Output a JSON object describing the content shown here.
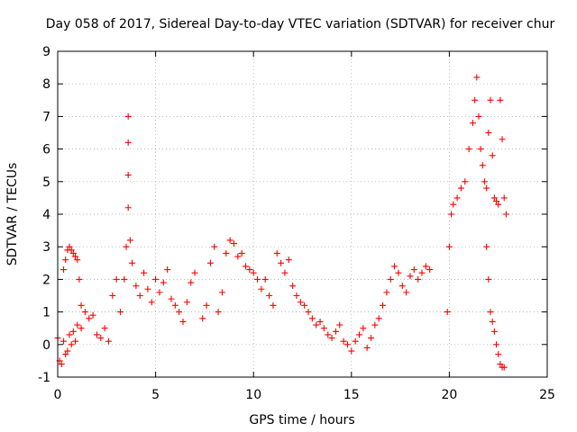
{
  "chart_data": {
    "type": "scatter",
    "title": "Day 058 of 2017, Sidereal Day-to-day VTEC variation (SDTVAR) for receiver chur",
    "xlabel": "GPS time / hours",
    "ylabel": "SDTVAR / TECUs",
    "xlim": [
      0,
      25
    ],
    "ylim": [
      -1,
      9
    ],
    "xticks": [
      "0",
      "5",
      "10",
      "15",
      "20",
      "25"
    ],
    "yticks": [
      "-1",
      "0",
      "1",
      "2",
      "3",
      "4",
      "5",
      "6",
      "7",
      "8",
      "9"
    ],
    "grid": true,
    "marker": "plus",
    "color": "#ff0000",
    "series": [
      {
        "name": "SDTVAR",
        "x": [
          0.0,
          0.1,
          0.2,
          0.3,
          0.4,
          0.5,
          0.6,
          0.7,
          0.8,
          0.9,
          1.0,
          1.2,
          1.4,
          1.6,
          1.8,
          2.0,
          2.2,
          2.4,
          2.6,
          2.8,
          3.0,
          0.3,
          0.4,
          0.5,
          0.6,
          0.7,
          0.8,
          0.9,
          1.0,
          1.1,
          1.2,
          3.2,
          3.4,
          3.5,
          3.6,
          3.6,
          3.6,
          3.6,
          3.7,
          3.8,
          4.0,
          4.2,
          4.4,
          4.6,
          4.8,
          5.0,
          5.2,
          5.4,
          5.6,
          5.8,
          6.0,
          6.2,
          6.4,
          6.6,
          6.8,
          7.0,
          7.4,
          7.6,
          7.8,
          8.0,
          8.2,
          8.4,
          8.6,
          8.8,
          9.0,
          9.2,
          9.4,
          9.6,
          9.8,
          10.0,
          10.2,
          10.4,
          10.6,
          10.8,
          11.0,
          11.2,
          11.4,
          11.6,
          11.8,
          12.0,
          12.2,
          12.4,
          12.6,
          12.8,
          13.0,
          13.2,
          13.4,
          13.6,
          13.8,
          14.0,
          14.2,
          14.4,
          14.6,
          14.8,
          15.0,
          15.2,
          15.4,
          15.6,
          15.8,
          16.0,
          16.2,
          16.4,
          16.6,
          16.8,
          17.0,
          17.2,
          17.4,
          17.6,
          17.8,
          18.0,
          18.2,
          18.4,
          18.6,
          18.8,
          19.0,
          19.9,
          20.0,
          20.1,
          20.2,
          20.4,
          20.6,
          20.8,
          21.0,
          21.2,
          21.3,
          21.4,
          21.5,
          21.6,
          21.7,
          21.8,
          21.9,
          22.0,
          22.1,
          22.2,
          22.3,
          22.4,
          22.5,
          22.6,
          22.7,
          22.8,
          22.9,
          21.9,
          22.0,
          22.1,
          22.2,
          22.3,
          22.4,
          22.5,
          22.6,
          22.7,
          22.8
        ],
        "y": [
          0.2,
          -0.5,
          -0.6,
          0.1,
          -0.3,
          -0.2,
          0.3,
          0.0,
          0.4,
          0.1,
          0.6,
          0.5,
          1.0,
          0.8,
          0.9,
          0.3,
          0.2,
          0.5,
          0.1,
          1.5,
          2.0,
          2.3,
          2.6,
          2.9,
          3.0,
          2.9,
          2.8,
          2.7,
          2.6,
          2.0,
          1.2,
          1.0,
          2.0,
          3.0,
          7.0,
          6.2,
          5.2,
          4.2,
          3.2,
          2.5,
          1.8,
          1.5,
          2.2,
          1.7,
          1.3,
          2.0,
          1.6,
          1.9,
          2.3,
          1.4,
          1.2,
          1.0,
          0.7,
          1.3,
          1.9,
          2.2,
          0.8,
          1.2,
          2.5,
          3.0,
          1.0,
          1.6,
          2.8,
          3.2,
          3.1,
          2.7,
          2.8,
          2.4,
          2.3,
          2.2,
          2.0,
          1.7,
          2.0,
          1.5,
          1.2,
          2.8,
          2.5,
          2.2,
          2.6,
          1.8,
          1.5,
          1.3,
          1.2,
          1.0,
          0.8,
          0.6,
          0.7,
          0.5,
          0.3,
          0.2,
          0.4,
          0.6,
          0.1,
          0.0,
          -0.2,
          0.1,
          0.3,
          0.5,
          -0.1,
          0.2,
          0.6,
          0.8,
          1.2,
          1.6,
          2.0,
          2.4,
          2.2,
          1.8,
          1.6,
          2.1,
          2.3,
          2.0,
          2.2,
          2.4,
          2.3,
          1.0,
          3.0,
          4.0,
          4.3,
          4.5,
          4.8,
          5.0,
          6.0,
          6.8,
          7.5,
          8.2,
          7.0,
          6.0,
          5.5,
          5.0,
          4.8,
          6.5,
          7.5,
          5.8,
          4.5,
          4.4,
          4.3,
          7.5,
          6.3,
          4.5,
          4.0,
          3.0,
          2.0,
          1.0,
          0.7,
          0.4,
          0.0,
          -0.3,
          -0.6,
          -0.7,
          -0.7
        ]
      }
    ]
  }
}
